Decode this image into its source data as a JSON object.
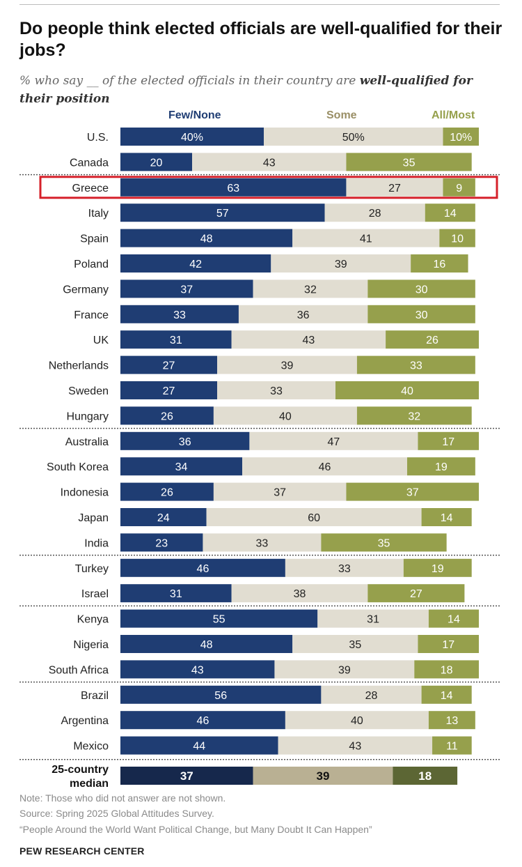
{
  "title": "Do people think elected officials are well-qualified for their jobs?",
  "subtitle_prefix": "% who say __ of the elected officials in their country are ",
  "subtitle_emphasis": "well-qualified for their position",
  "colors": {
    "few_none": "#1f3d73",
    "some": "#e1ddd1",
    "all_most": "#96a04c",
    "median_few_none": "#16284c",
    "median_some": "#b9b093",
    "median_all_most": "#5c6634",
    "highlight": "#d6202a"
  },
  "chart_data": {
    "type": "bar",
    "orientation": "horizontal",
    "stacked": true,
    "series": [
      {
        "name": "Few/None",
        "values": [
          40,
          20,
          63,
          57,
          48,
          42,
          37,
          33,
          31,
          27,
          27,
          26,
          36,
          34,
          26,
          24,
          23,
          46,
          31,
          55,
          48,
          43,
          56,
          46,
          44,
          37
        ]
      },
      {
        "name": "Some",
        "values": [
          50,
          43,
          27,
          28,
          41,
          39,
          32,
          36,
          43,
          39,
          33,
          40,
          47,
          46,
          37,
          60,
          33,
          33,
          38,
          31,
          35,
          39,
          28,
          40,
          43,
          39
        ]
      },
      {
        "name": "All/Most",
        "values": [
          10,
          35,
          9,
          14,
          10,
          16,
          30,
          30,
          26,
          33,
          40,
          32,
          17,
          19,
          37,
          14,
          35,
          19,
          27,
          14,
          17,
          18,
          14,
          13,
          11,
          18
        ]
      }
    ],
    "categories": [
      "U.S.",
      "Canada",
      "Greece",
      "Italy",
      "Spain",
      "Poland",
      "Germany",
      "France",
      "UK",
      "Netherlands",
      "Sweden",
      "Hungary",
      "Australia",
      "South Korea",
      "Indonesia",
      "Japan",
      "India",
      "Turkey",
      "Israel",
      "Kenya",
      "Nigeria",
      "South Africa",
      "Brazil",
      "Argentina",
      "Mexico",
      "25-country median"
    ],
    "value_labels": [
      [
        "40%",
        "50%",
        "10%"
      ],
      [
        "20",
        "43",
        "35"
      ],
      [
        "63",
        "27",
        "9"
      ],
      [
        "57",
        "28",
        "14"
      ],
      [
        "48",
        "41",
        "10"
      ],
      [
        "42",
        "39",
        "16"
      ],
      [
        "37",
        "32",
        "30"
      ],
      [
        "33",
        "36",
        "30"
      ],
      [
        "31",
        "43",
        "26"
      ],
      [
        "27",
        "39",
        "33"
      ],
      [
        "27",
        "33",
        "40"
      ],
      [
        "26",
        "40",
        "32"
      ],
      [
        "36",
        "47",
        "17"
      ],
      [
        "34",
        "46",
        "19"
      ],
      [
        "26",
        "37",
        "37"
      ],
      [
        "24",
        "60",
        "14"
      ],
      [
        "23",
        "33",
        "35"
      ],
      [
        "46",
        "33",
        "19"
      ],
      [
        "31",
        "38",
        "27"
      ],
      [
        "55",
        "31",
        "14"
      ],
      [
        "48",
        "35",
        "17"
      ],
      [
        "43",
        "39",
        "18"
      ],
      [
        "56",
        "28",
        "14"
      ],
      [
        "46",
        "40",
        "13"
      ],
      [
        "44",
        "43",
        "11"
      ],
      [
        "37",
        "39",
        "18"
      ]
    ],
    "xlim": [
      0,
      100
    ],
    "highlighted_category": "Greece",
    "median_label_lines": [
      "25-country",
      "median"
    ],
    "group_separators_after": [
      "Canada",
      "Hungary",
      "India",
      "Israel",
      "South Africa",
      "Mexico"
    ],
    "legend_position": "top",
    "grid": false
  },
  "notes": {
    "note": "Note: Those who did not answer are not shown.",
    "source": "Source: Spring 2025 Global Attitudes Survey.",
    "report": "“People Around the World Want Political Change, but Many Doubt It Can Happen”"
  },
  "footer": "PEW RESEARCH CENTER"
}
